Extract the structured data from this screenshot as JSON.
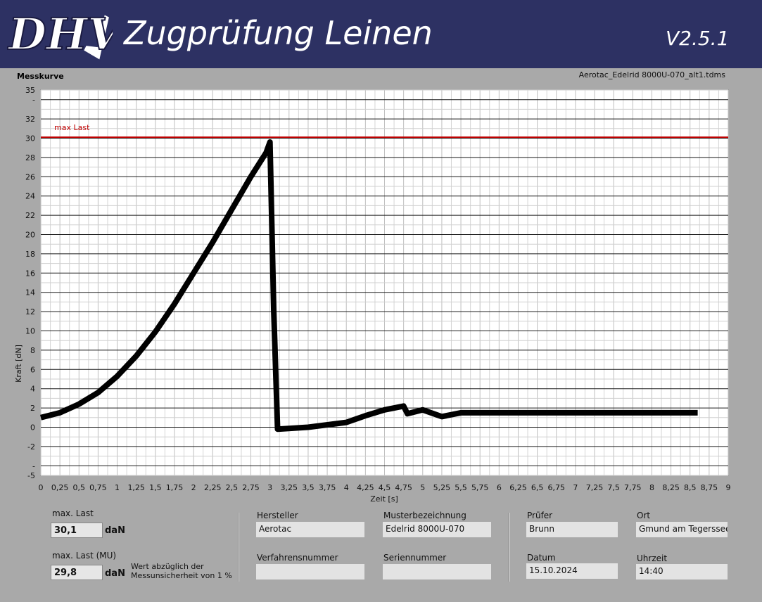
{
  "header": {
    "logo_text": "DHV",
    "title": "Zugprüfung Leinen",
    "version": "V2.5.1"
  },
  "plot": {
    "caption": "Messkurve",
    "file_name": "Aerotac_Edelrid 8000U-070_alt1.tdms"
  },
  "chart_data": {
    "type": "line",
    "xlabel": "Zeit [s]",
    "ylabel": "Kraft [dN]",
    "xlim": [
      0,
      9
    ],
    "ylim": [
      -5,
      35
    ],
    "x_ticks": [
      "0",
      "0,25",
      "0,5",
      "0,75",
      "1",
      "1,25",
      "1,5",
      "1,75",
      "2",
      "2,25",
      "2,5",
      "2,75",
      "3",
      "3,25",
      "3,5",
      "3,75",
      "4",
      "4,25",
      "4,5",
      "4,75",
      "5",
      "5,25",
      "5,5",
      "5,75",
      "6",
      "6,25",
      "6,5",
      "6,75",
      "7",
      "7,25",
      "7,5",
      "7,75",
      "8",
      "8,25",
      "8,5",
      "8,75",
      "9"
    ],
    "y_ticks": [
      "-5",
      "-",
      "-2",
      "0",
      "2",
      "4",
      "6",
      "8",
      "10",
      "12",
      "14",
      "16",
      "18",
      "20",
      "22",
      "24",
      "26",
      "28",
      "30",
      "32",
      "-",
      "35"
    ],
    "grid": true,
    "reference_line": {
      "label": "max Last",
      "y": 30.1,
      "color": "#c00000"
    },
    "series": [
      {
        "color": "#000000",
        "x": [
          0,
          0.25,
          0.5,
          0.75,
          1.0,
          1.25,
          1.5,
          1.75,
          2.0,
          2.25,
          2.5,
          2.75,
          2.95,
          3.0,
          3.05,
          3.1,
          3.5,
          4.0,
          4.25,
          4.5,
          4.75,
          4.8,
          5.0,
          5.25,
          5.5,
          6.0,
          7.0,
          8.0,
          8.6
        ],
        "y": [
          1.0,
          1.5,
          2.4,
          3.6,
          5.3,
          7.4,
          9.9,
          12.8,
          16.0,
          19.2,
          22.6,
          26.0,
          28.5,
          29.6,
          12.0,
          -0.2,
          0.0,
          0.5,
          1.2,
          1.8,
          2.2,
          1.4,
          1.8,
          1.1,
          1.5,
          1.5,
          1.5,
          1.5,
          1.5
        ]
      }
    ]
  },
  "results": {
    "max_last_label": "max. Last",
    "max_last_value": "30,1",
    "max_last_unit": "daN",
    "max_last_mu_label": "max. Last (MU)",
    "max_last_mu_value": "29,8",
    "max_last_mu_unit": "daN",
    "note_line1": "Wert abzüglich der",
    "note_line2": "Messunsicherheit von 1 %"
  },
  "info": {
    "hersteller_label": "Hersteller",
    "hersteller": "Aerotac",
    "musterbezeichnung_label": "Musterbezeichnung",
    "musterbezeichnung": "Edelrid 8000U-070",
    "verfahrensnummer_label": "Verfahrensnummer",
    "verfahrensnummer": "",
    "seriennummer_label": "Seriennummer",
    "seriennummer": "",
    "pruefer_label": "Prüfer",
    "pruefer": "Brunn",
    "ort_label": "Ort",
    "ort": "Gmund am Tegerssee",
    "datum_label": "Datum",
    "datum": "15.10.2024",
    "uhrzeit_label": "Uhrzeit",
    "uhrzeit": "14:40"
  }
}
